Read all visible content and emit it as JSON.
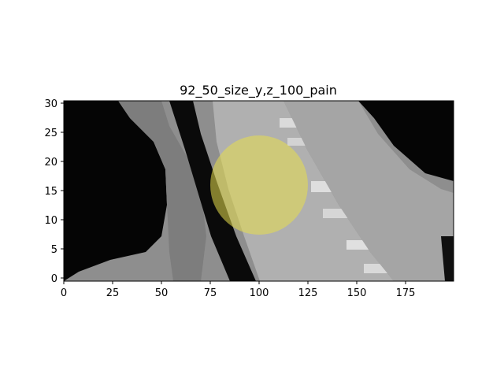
{
  "figure": {
    "title": "92_50_size_y,z_100_pain"
  },
  "chart_data": {
    "type": "heatmap",
    "title": "92_50_size_y,z_100_pain",
    "xlabel": "",
    "ylabel": "",
    "xlim": [
      0,
      200
    ],
    "ylim": [
      0,
      31
    ],
    "x_ticks": [
      "0",
      "25",
      "50",
      "75",
      "100",
      "125",
      "150",
      "175"
    ],
    "y_ticks": [
      "0",
      "5",
      "10",
      "15",
      "20",
      "25",
      "30"
    ],
    "colormap": "gray",
    "overlay": {
      "shape": "circle-mask",
      "color": "#d8cf5a",
      "center": [
        100,
        16
      ],
      "x_radius": 25,
      "y_radius": 8.5
    },
    "grid": false
  }
}
